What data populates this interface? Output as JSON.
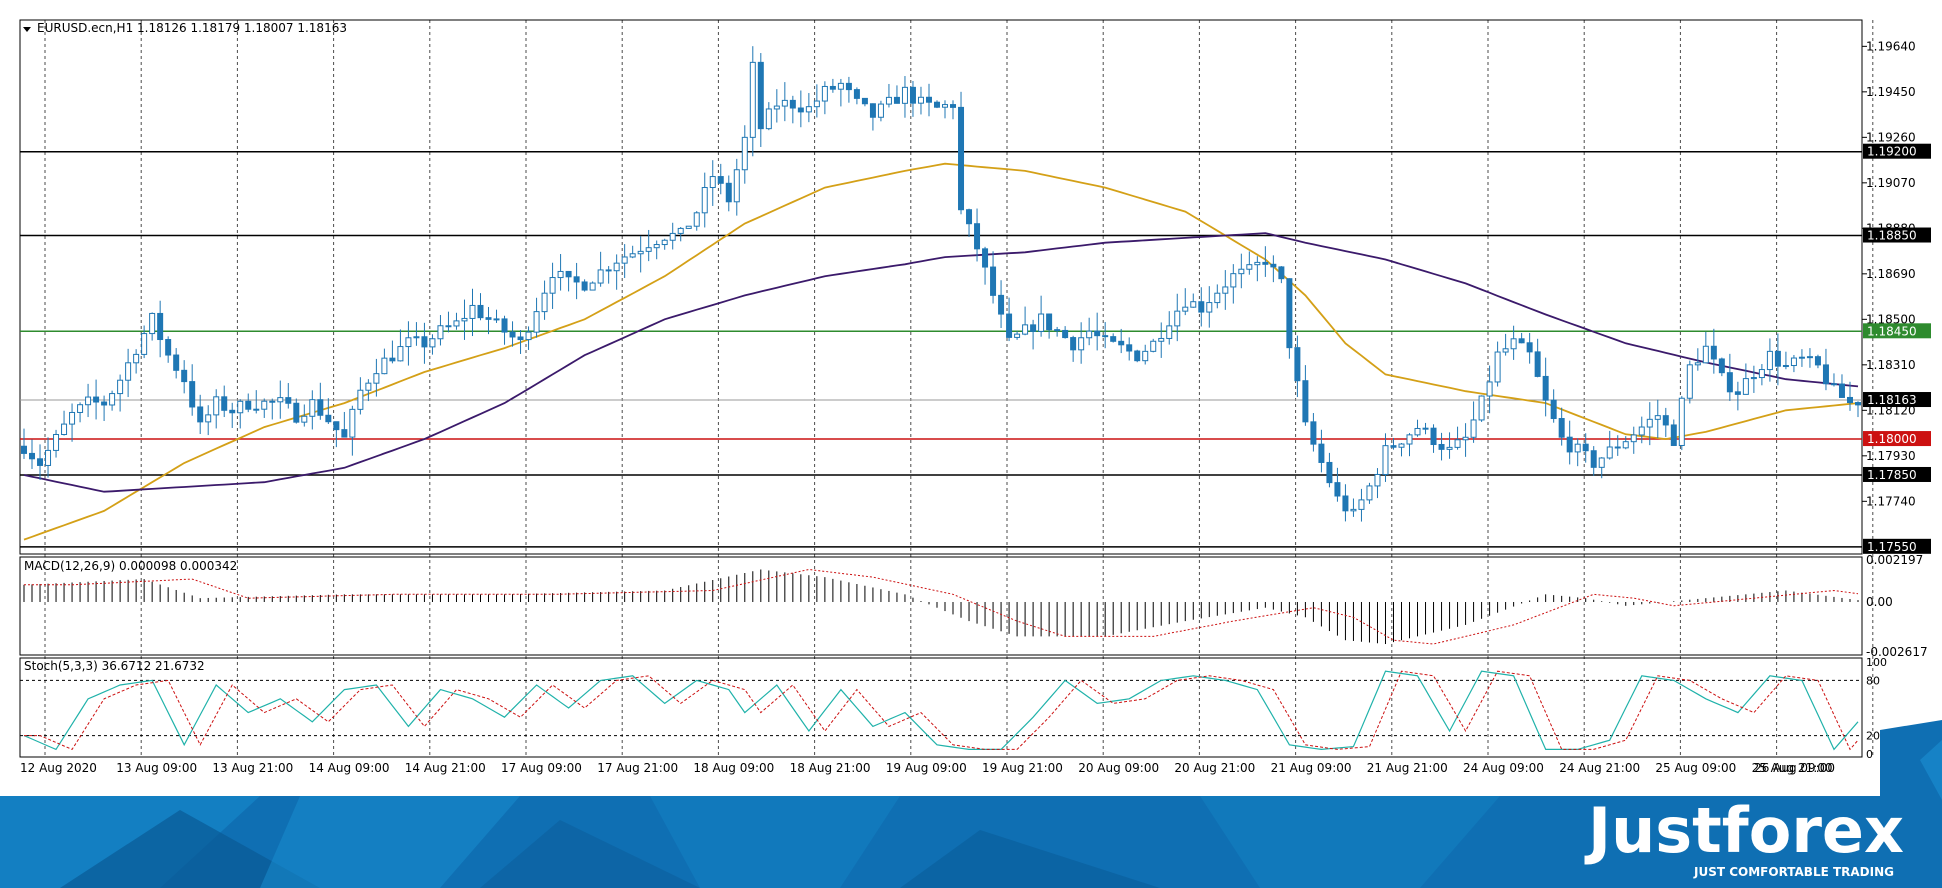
{
  "header": {
    "symbol_line": "EURUSD.ecn,H1  1.18126 1.18179 1.18007 1.18163"
  },
  "price_axis": {
    "ticks": [
      "1.19640",
      "1.19450",
      "1.19260",
      "1.19070",
      "1.18880",
      "1.18690",
      "1.18500",
      "1.18310",
      "1.18120",
      "1.17930",
      "1.17740"
    ]
  },
  "levels": [
    {
      "label": "1.19200",
      "value": 1.192,
      "color": "#000000"
    },
    {
      "label": "1.18850",
      "value": 1.1885,
      "color": "#000000"
    },
    {
      "label": "1.18450",
      "value": 1.1845,
      "color": "#2e8b2e"
    },
    {
      "label": "1.18000",
      "value": 1.18,
      "color": "#cc1111"
    },
    {
      "label": "1.17850",
      "value": 1.1785,
      "color": "#000000"
    },
    {
      "label": "1.17550",
      "value": 1.1755,
      "color": "#000000"
    }
  ],
  "current_price": {
    "label": "1.18163",
    "value": 1.18163
  },
  "macd": {
    "label": "MACD(12,26,9) 0.000098 0.000342",
    "ticks": [
      "0.002197",
      "0.00",
      "-0.002617"
    ]
  },
  "stoch": {
    "label": "Stoch(5,3,3) 36.6712 21.6732",
    "ticks": [
      "100",
      "80",
      "20",
      "0"
    ]
  },
  "time_axis": {
    "labels": [
      "12 Aug 2020",
      "13 Aug 09:00",
      "13 Aug 21:00",
      "14 Aug 09:00",
      "14 Aug 21:00",
      "17 Aug 09:00",
      "17 Aug 21:00",
      "18 Aug 09:00",
      "18 Aug 21:00",
      "19 Aug 09:00",
      "19 Aug 21:00",
      "20 Aug 09:00",
      "20 Aug 21:00",
      "21 Aug 09:00",
      "21 Aug 21:00",
      "24 Aug 09:00",
      "24 Aug 21:00",
      "25 Aug 09:00",
      "25 Aug 21:00",
      "26 Aug 09:00"
    ]
  },
  "brand": {
    "name": "Justforex",
    "tagline": "JUST COMFORTABLE TRADING"
  },
  "colors": {
    "candle": "#1f77b4",
    "ma_fast": "#d4a017",
    "ma_slow": "#3b1a6b",
    "banner": "#0f6fb3"
  },
  "chart_data": {
    "type": "candlestick",
    "symbol": "EURUSD.ecn",
    "timeframe": "H1",
    "ylim": [
      1.1752,
      1.1975
    ],
    "price_anchors": [
      [
        0,
        1.1797
      ],
      [
        2,
        1.179
      ],
      [
        4,
        1.18
      ],
      [
        6,
        1.181
      ],
      [
        8,
        1.1815
      ],
      [
        10,
        1.1815
      ],
      [
        12,
        1.1825
      ],
      [
        14,
        1.1838
      ],
      [
        16,
        1.185
      ],
      [
        18,
        1.1835
      ],
      [
        20,
        1.1825
      ],
      [
        22,
        1.1805
      ],
      [
        24,
        1.1815
      ],
      [
        26,
        1.1812
      ],
      [
        28,
        1.1815
      ],
      [
        30,
        1.1815
      ],
      [
        32,
        1.1815
      ],
      [
        34,
        1.181
      ],
      [
        36,
        1.1815
      ],
      [
        38,
        1.1808
      ],
      [
        40,
        1.18
      ],
      [
        42,
        1.182
      ],
      [
        44,
        1.183
      ],
      [
        46,
        1.1835
      ],
      [
        48,
        1.184
      ],
      [
        50,
        1.184
      ],
      [
        52,
        1.1845
      ],
      [
        54,
        1.1848
      ],
      [
        56,
        1.1855
      ],
      [
        58,
        1.185
      ],
      [
        60,
        1.1845
      ],
      [
        62,
        1.184
      ],
      [
        64,
        1.1855
      ],
      [
        66,
        1.187
      ],
      [
        68,
        1.1865
      ],
      [
        70,
        1.1865
      ],
      [
        72,
        1.187
      ],
      [
        74,
        1.1875
      ],
      [
        76,
        1.1878
      ],
      [
        78,
        1.1882
      ],
      [
        80,
        1.1885
      ],
      [
        82,
        1.1885
      ],
      [
        84,
        1.1895
      ],
      [
        86,
        1.191
      ],
      [
        88,
        1.19
      ],
      [
        90,
        1.1925
      ],
      [
        91,
        1.1955
      ],
      [
        92,
        1.193
      ],
      [
        94,
        1.194
      ],
      [
        96,
        1.194
      ],
      [
        98,
        1.1938
      ],
      [
        100,
        1.1945
      ],
      [
        102,
        1.1948
      ],
      [
        104,
        1.194
      ],
      [
        106,
        1.1935
      ],
      [
        108,
        1.194
      ],
      [
        110,
        1.1945
      ],
      [
        112,
        1.194
      ],
      [
        114,
        1.1938
      ],
      [
        116,
        1.194
      ],
      [
        117,
        1.1895
      ],
      [
        119,
        1.188
      ],
      [
        121,
        1.186
      ],
      [
        123,
        1.184
      ],
      [
        125,
        1.1845
      ],
      [
        127,
        1.185
      ],
      [
        129,
        1.1845
      ],
      [
        131,
        1.184
      ],
      [
        133,
        1.1845
      ],
      [
        135,
        1.184
      ],
      [
        137,
        1.1838
      ],
      [
        139,
        1.1835
      ],
      [
        141,
        1.184
      ],
      [
        143,
        1.185
      ],
      [
        145,
        1.1858
      ],
      [
        147,
        1.1855
      ],
      [
        149,
        1.1862
      ],
      [
        151,
        1.1868
      ],
      [
        153,
        1.187
      ],
      [
        155,
        1.1875
      ],
      [
        157,
        1.1865
      ],
      [
        158,
        1.184
      ],
      [
        160,
        1.1805
      ],
      [
        162,
        1.179
      ],
      [
        164,
        1.1775
      ],
      [
        166,
        1.1768
      ],
      [
        168,
        1.178
      ],
      [
        170,
        1.1795
      ],
      [
        172,
        1.18
      ],
      [
        174,
        1.1805
      ],
      [
        176,
        1.18
      ],
      [
        178,
        1.1795
      ],
      [
        180,
        1.18
      ],
      [
        182,
        1.1815
      ],
      [
        184,
        1.1835
      ],
      [
        186,
        1.184
      ],
      [
        188,
        1.1835
      ],
      [
        190,
        1.1815
      ],
      [
        192,
        1.18
      ],
      [
        194,
        1.1795
      ],
      [
        196,
        1.179
      ],
      [
        198,
        1.1795
      ],
      [
        200,
        1.18
      ],
      [
        202,
        1.1805
      ],
      [
        204,
        1.181
      ],
      [
        206,
        1.18
      ],
      [
        208,
        1.183
      ],
      [
        210,
        1.1838
      ],
      [
        212,
        1.1825
      ],
      [
        214,
        1.182
      ],
      [
        216,
        1.1828
      ],
      [
        218,
        1.1835
      ],
      [
        220,
        1.183
      ],
      [
        222,
        1.1833
      ],
      [
        224,
        1.183
      ],
      [
        226,
        1.182
      ],
      [
        228,
        1.1815
      ],
      [
        229,
        1.1816
      ]
    ],
    "ma_fast": [
      [
        0,
        1.1758
      ],
      [
        10,
        1.177
      ],
      [
        20,
        1.179
      ],
      [
        30,
        1.1805
      ],
      [
        40,
        1.1815
      ],
      [
        50,
        1.1828
      ],
      [
        60,
        1.1838
      ],
      [
        70,
        1.185
      ],
      [
        80,
        1.1868
      ],
      [
        90,
        1.189
      ],
      [
        100,
        1.1905
      ],
      [
        110,
        1.1912
      ],
      [
        115,
        1.1915
      ],
      [
        125,
        1.1912
      ],
      [
        135,
        1.1905
      ],
      [
        145,
        1.1895
      ],
      [
        150,
        1.1885
      ],
      [
        155,
        1.1875
      ],
      [
        160,
        1.186
      ],
      [
        165,
        1.184
      ],
      [
        170,
        1.1827
      ],
      [
        180,
        1.182
      ],
      [
        190,
        1.1815
      ],
      [
        200,
        1.1802
      ],
      [
        205,
        1.18
      ],
      [
        210,
        1.1803
      ],
      [
        220,
        1.1812
      ],
      [
        229,
        1.1815
      ]
    ],
    "ma_slow": [
      [
        0,
        1.1785
      ],
      [
        10,
        1.1778
      ],
      [
        20,
        1.178
      ],
      [
        30,
        1.1782
      ],
      [
        40,
        1.1788
      ],
      [
        50,
        1.18
      ],
      [
        60,
        1.1815
      ],
      [
        70,
        1.1835
      ],
      [
        80,
        1.185
      ],
      [
        90,
        1.186
      ],
      [
        100,
        1.1868
      ],
      [
        110,
        1.1873
      ],
      [
        115,
        1.1876
      ],
      [
        125,
        1.1878
      ],
      [
        135,
        1.1882
      ],
      [
        145,
        1.1884
      ],
      [
        150,
        1.1885
      ],
      [
        155,
        1.1886
      ],
      [
        160,
        1.1882
      ],
      [
        170,
        1.1875
      ],
      [
        180,
        1.1865
      ],
      [
        190,
        1.1852
      ],
      [
        200,
        1.184
      ],
      [
        210,
        1.1832
      ],
      [
        220,
        1.1825
      ],
      [
        229,
        1.1822
      ]
    ],
    "macd_anchors": [
      [
        0,
        0.0009
      ],
      [
        15,
        0.0012
      ],
      [
        22,
        0.0002
      ],
      [
        40,
        0.0004
      ],
      [
        60,
        0.0004
      ],
      [
        80,
        0.0006
      ],
      [
        92,
        0.0017
      ],
      [
        100,
        0.0013
      ],
      [
        110,
        0.0004
      ],
      [
        118,
        -0.001
      ],
      [
        124,
        -0.0018
      ],
      [
        135,
        -0.0018
      ],
      [
        145,
        -0.001
      ],
      [
        155,
        -0.0003
      ],
      [
        160,
        -0.0008
      ],
      [
        165,
        -0.002
      ],
      [
        170,
        -0.0022
      ],
      [
        180,
        -0.0012
      ],
      [
        190,
        0.0004
      ],
      [
        195,
        0.0002
      ],
      [
        200,
        -0.0002
      ],
      [
        210,
        0.0002
      ],
      [
        220,
        0.0006
      ],
      [
        229,
        0.0001
      ]
    ],
    "stoch_k_anchors": [
      [
        0,
        20
      ],
      [
        4,
        5
      ],
      [
        8,
        60
      ],
      [
        12,
        75
      ],
      [
        16,
        80
      ],
      [
        20,
        10
      ],
      [
        24,
        75
      ],
      [
        28,
        45
      ],
      [
        32,
        60
      ],
      [
        36,
        35
      ],
      [
        40,
        70
      ],
      [
        44,
        75
      ],
      [
        48,
        30
      ],
      [
        52,
        70
      ],
      [
        56,
        60
      ],
      [
        60,
        40
      ],
      [
        64,
        75
      ],
      [
        68,
        50
      ],
      [
        72,
        80
      ],
      [
        76,
        85
      ],
      [
        80,
        55
      ],
      [
        84,
        80
      ],
      [
        88,
        70
      ],
      [
        90,
        45
      ],
      [
        94,
        75
      ],
      [
        98,
        25
      ],
      [
        102,
        70
      ],
      [
        106,
        30
      ],
      [
        110,
        45
      ],
      [
        114,
        10
      ],
      [
        118,
        5
      ],
      [
        122,
        5
      ],
      [
        126,
        40
      ],
      [
        130,
        80
      ],
      [
        134,
        55
      ],
      [
        138,
        60
      ],
      [
        142,
        80
      ],
      [
        146,
        85
      ],
      [
        150,
        80
      ],
      [
        154,
        70
      ],
      [
        158,
        10
      ],
      [
        162,
        5
      ],
      [
        166,
        8
      ],
      [
        170,
        90
      ],
      [
        174,
        85
      ],
      [
        178,
        25
      ],
      [
        182,
        90
      ],
      [
        186,
        85
      ],
      [
        190,
        5
      ],
      [
        194,
        5
      ],
      [
        198,
        15
      ],
      [
        202,
        85
      ],
      [
        206,
        80
      ],
      [
        210,
        60
      ],
      [
        214,
        45
      ],
      [
        218,
        85
      ],
      [
        222,
        80
      ],
      [
        226,
        5
      ],
      [
        229,
        35
      ]
    ]
  }
}
